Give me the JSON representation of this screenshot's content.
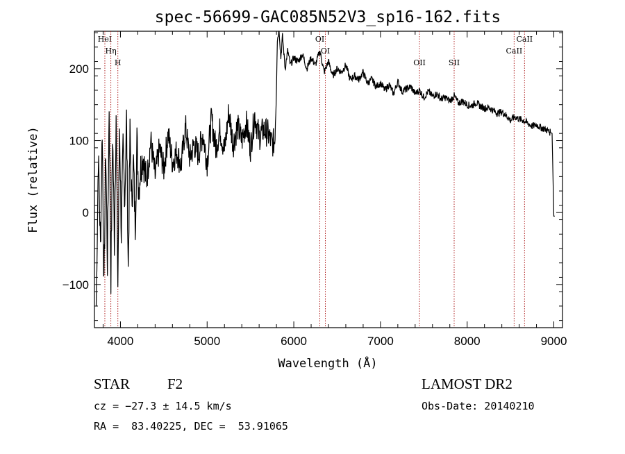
{
  "chart_data": {
    "type": "line",
    "title": "spec-56699-GAC085N52V3_sp16-162.fits",
    "xlabel": "Wavelength (Å)",
    "ylabel": "Flux (relative)",
    "xlim": [
      3700,
      9100
    ],
    "ylim": [
      -160,
      252
    ],
    "x_ticks": [
      4000,
      5000,
      6000,
      7000,
      8000,
      9000
    ],
    "y_ticks": [
      -100,
      0,
      100,
      200
    ],
    "x_tick_labels": [
      "4000",
      "5000",
      "6000",
      "7000",
      "8000",
      "9000"
    ],
    "y_tick_labels": [
      "−100",
      "0",
      "100",
      "200"
    ],
    "grid": false,
    "line_color": "#000000",
    "marker_color": "#b02020",
    "series": [
      {
        "x": [
          3720,
          3745,
          3770,
          3790,
          3810,
          3830,
          3850,
          3870,
          3890,
          3910,
          3930,
          3950,
          3970,
          3990,
          4010,
          4030,
          4050,
          4070,
          4090,
          4110,
          4130,
          4150,
          4170,
          4190,
          4210,
          4230,
          4260,
          4300,
          4350,
          4400,
          4450,
          4500,
          4550,
          4600,
          4650,
          4700,
          4750,
          4800,
          4850,
          4900,
          4950,
          5000,
          5050,
          5100,
          5150,
          5200,
          5250,
          5300,
          5350,
          5400,
          5450,
          5500,
          5550,
          5600,
          5650,
          5700,
          5750,
          5780,
          5800,
          5810,
          5830,
          5850,
          5870,
          5900,
          5930,
          5960,
          6000,
          6050,
          6100,
          6150,
          6200,
          6250,
          6300,
          6350,
          6400,
          6450,
          6500,
          6550,
          6600,
          6650,
          6700,
          6750,
          6800,
          6850,
          6900,
          6950,
          7000,
          7050,
          7100,
          7150,
          7200,
          7250,
          7300,
          7350,
          7400,
          7450,
          7500,
          7550,
          7600,
          7650,
          7700,
          7750,
          7800,
          7850,
          7900,
          7950,
          8000,
          8050,
          8100,
          8150,
          8200,
          8250,
          8300,
          8350,
          8400,
          8450,
          8500,
          8550,
          8600,
          8650,
          8700,
          8750,
          8800,
          8850,
          8900,
          8950,
          8980,
          9000,
          9010
        ],
        "y": [
          -130,
          80,
          -50,
          120,
          -110,
          90,
          -70,
          150,
          -90,
          110,
          -40,
          140,
          -100,
          120,
          -30,
          90,
          20,
          130,
          -80,
          110,
          10,
          70,
          -20,
          100,
          30,
          60,
          80,
          40,
          100,
          50,
          90,
          60,
          110,
          70,
          85,
          65,
          120,
          75,
          95,
          80,
          110,
          70,
          130,
          90,
          115,
          85,
          140,
          95,
          120,
          100,
          125,
          90,
          135,
          105,
          115,
          110,
          95,
          100,
          175,
          240,
          255,
          215,
          245,
          200,
          225,
          205,
          215,
          210,
          220,
          200,
          215,
          205,
          225,
          195,
          210,
          190,
          200,
          195,
          205,
          185,
          190,
          185,
          195,
          180,
          185,
          175,
          180,
          170,
          178,
          165,
          182,
          168,
          172,
          175,
          165,
          170,
          160,
          168,
          162,
          165,
          158,
          160,
          155,
          162,
          152,
          155,
          150,
          148,
          153,
          148,
          145,
          146,
          142,
          138,
          140,
          135,
          128,
          133,
          130,
          128,
          124,
          120,
          122,
          118,
          116,
          112,
          110,
          -5,
          -5
        ]
      }
    ],
    "spectral_lines": [
      {
        "label": "HeI",
        "x": 3820,
        "level": 1
      },
      {
        "label": "Hη",
        "x": 3889,
        "level": 2
      },
      {
        "label": "H",
        "x": 3970,
        "level": 3
      },
      {
        "label": "OI",
        "x": 6300,
        "level": 1
      },
      {
        "label": "OI",
        "x": 6364,
        "level": 2
      },
      {
        "label": "OII",
        "x": 7450,
        "level": 3
      },
      {
        "label": "SII",
        "x": 7850,
        "level": 3
      },
      {
        "label": "CaII",
        "x": 8542,
        "level": 2
      },
      {
        "label": "CaII",
        "x": 8662,
        "level": 1
      }
    ]
  },
  "info": {
    "class_label": "STAR",
    "subclass": "F2",
    "survey": "LAMOST DR2",
    "cz": "cz = −27.3 ± 14.5 km/s",
    "obs_date": "Obs-Date: 20140210",
    "coords": "RA =  83.40225, DEC =  53.91065"
  }
}
